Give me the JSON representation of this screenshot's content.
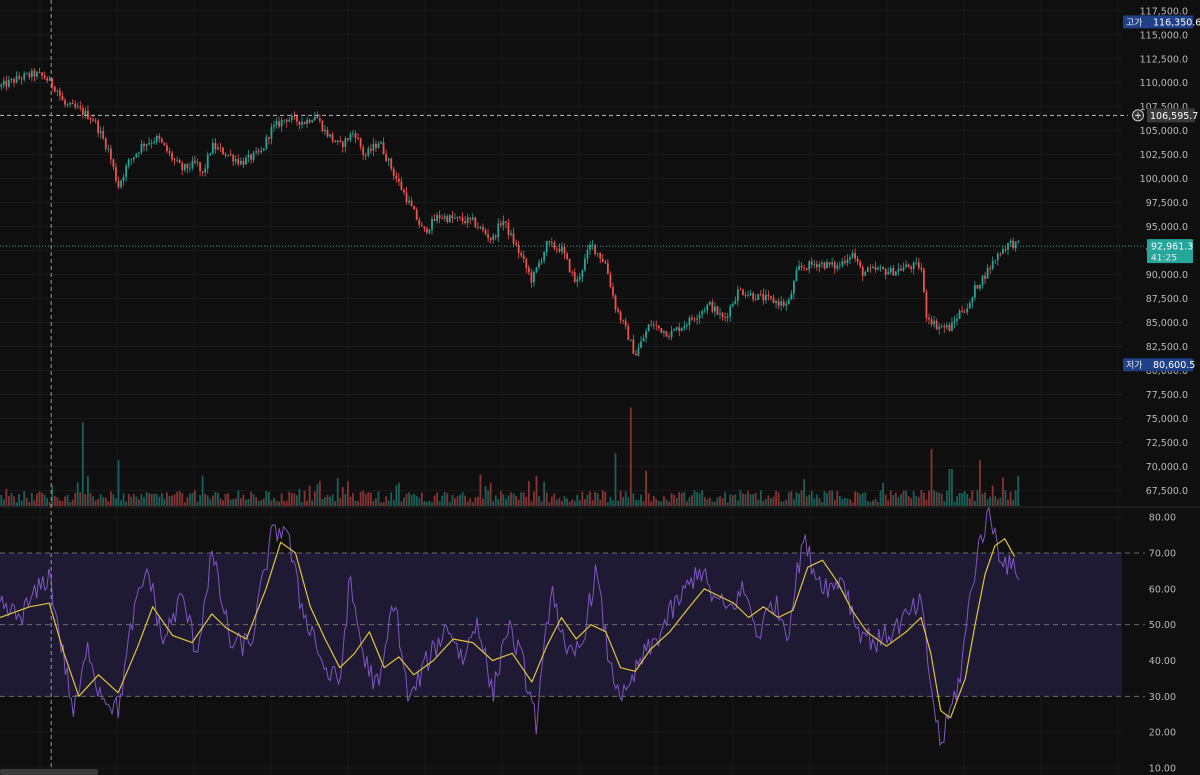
{
  "chart_data": [
    {
      "type": "candlestick",
      "panel": "price",
      "y_ticks": [
        "117,500.0",
        "115,000.0",
        "112,500.0",
        "110,000.0",
        "107,500.0",
        "105,000.0",
        "102,500.0",
        "100,000.0",
        "97,500.0",
        "95,000.0",
        "92,500.0",
        "90,000.0",
        "87,500.0",
        "85,000.0",
        "82,500.0",
        "80,000.0",
        "77,500.0",
        "75,000.0",
        "72,500.0",
        "70,000.0",
        "67,500.0"
      ],
      "ylim": [
        66500,
        118000
      ],
      "close_path": [
        [
          0,
          109600
        ],
        [
          0.02,
          110500
        ],
        [
          0.035,
          110900
        ],
        [
          0.045,
          110600
        ],
        [
          0.058,
          109300
        ],
        [
          0.065,
          107700
        ],
        [
          0.08,
          107200
        ],
        [
          0.095,
          106200
        ],
        [
          0.11,
          103000
        ],
        [
          0.12,
          99200
        ],
        [
          0.13,
          101600
        ],
        [
          0.145,
          103600
        ],
        [
          0.16,
          104200
        ],
        [
          0.175,
          102100
        ],
        [
          0.185,
          101000
        ],
        [
          0.2,
          101600
        ],
        [
          0.205,
          100200
        ],
        [
          0.215,
          103400
        ],
        [
          0.23,
          102600
        ],
        [
          0.245,
          101700
        ],
        [
          0.265,
          102700
        ],
        [
          0.275,
          105100
        ],
        [
          0.29,
          106300
        ],
        [
          0.31,
          105900
        ],
        [
          0.32,
          106700
        ],
        [
          0.33,
          104900
        ],
        [
          0.345,
          103400
        ],
        [
          0.36,
          104900
        ],
        [
          0.37,
          102300
        ],
        [
          0.385,
          103900
        ],
        [
          0.4,
          100500
        ],
        [
          0.415,
          97500
        ],
        [
          0.43,
          94400
        ],
        [
          0.445,
          96100
        ],
        [
          0.46,
          95800
        ],
        [
          0.48,
          95500
        ],
        [
          0.5,
          93600
        ],
        [
          0.51,
          95800
        ],
        [
          0.52,
          93700
        ],
        [
          0.53,
          91700
        ],
        [
          0.54,
          89400
        ],
        [
          0.555,
          93100
        ],
        [
          0.57,
          92700
        ],
        [
          0.585,
          89000
        ],
        [
          0.6,
          93200
        ],
        [
          0.615,
          91100
        ],
        [
          0.625,
          86600
        ],
        [
          0.635,
          84300
        ],
        [
          0.645,
          81600
        ],
        [
          0.66,
          84900
        ],
        [
          0.68,
          83800
        ],
        [
          0.7,
          85200
        ],
        [
          0.72,
          86900
        ],
        [
          0.735,
          85300
        ],
        [
          0.75,
          88400
        ],
        [
          0.765,
          87800
        ],
        [
          0.78,
          87400
        ],
        [
          0.8,
          86800
        ],
        [
          0.81,
          90600
        ],
        [
          0.83,
          91200
        ],
        [
          0.85,
          90800
        ],
        [
          0.865,
          92300
        ],
        [
          0.875,
          90200
        ],
        [
          0.89,
          90500
        ],
        [
          0.905,
          90300
        ],
        [
          0.92,
          90800
        ],
        [
          0.935,
          90900
        ],
        [
          0.94,
          85900
        ],
        [
          0.95,
          84700
        ],
        [
          0.965,
          84400
        ],
        [
          0.975,
          86200
        ],
        [
          0.985,
          86800
        ],
        [
          0.99,
          88600
        ],
        [
          1,
          90000
        ],
        [
          1.015,
          92400
        ],
        [
          1.025,
          93300
        ],
        [
          1.035,
          93000
        ]
      ],
      "volume": {
        "ylim": [
          0,
          125
        ],
        "spikes": [
          [
            0.085,
            95
          ],
          [
            0.12,
            52
          ],
          [
            0.625,
            60
          ],
          [
            0.64,
            112
          ],
          [
            0.655,
            40
          ],
          [
            0.945,
            65
          ],
          [
            0.995,
            52
          ],
          [
            0.965,
            42
          ]
        ]
      },
      "annotations": [
        {
          "label": "고가",
          "value": "116,350.6",
          "price": 116350.6,
          "color": "#1f3f87"
        },
        {
          "label": "저가",
          "value": "80,600.5",
          "price": 80600.5,
          "color": "#1f3f87"
        }
      ],
      "crosshair": {
        "price": 106595.7,
        "text": "106,595.7",
        "x_fraction": 0.052
      },
      "last_price": {
        "price": 92961.3,
        "text": "92,961.3",
        "countdown": "41:25",
        "color": "#26a69a"
      },
      "up_color": "#26a69a",
      "down_color": "#ef5350"
    },
    {
      "type": "line",
      "panel": "rsi",
      "y_ticks": [
        "80.00",
        "70.00",
        "60.00",
        "50.00",
        "40.00",
        "30.00",
        "20.00",
        "10.00"
      ],
      "ylim": [
        10,
        82
      ],
      "bands": {
        "upper": 70,
        "middle": 50,
        "lower": 30,
        "fill": "#1f1a33"
      },
      "series": [
        {
          "key": "rsi",
          "color": "#7e57c2",
          "values": [
            [
              0,
              55
            ],
            [
              0.02,
              52
            ],
            [
              0.04,
              60
            ],
            [
              0.05,
              64
            ],
            [
              0.06,
              48
            ],
            [
              0.075,
              25
            ],
            [
              0.09,
              44
            ],
            [
              0.1,
              32
            ],
            [
              0.12,
              26
            ],
            [
              0.135,
              52
            ],
            [
              0.15,
              66
            ],
            [
              0.165,
              45
            ],
            [
              0.185,
              58
            ],
            [
              0.2,
              42
            ],
            [
              0.215,
              70
            ],
            [
              0.235,
              44
            ],
            [
              0.255,
              45
            ],
            [
              0.275,
              74
            ],
            [
              0.29,
              78
            ],
            [
              0.305,
              56
            ],
            [
              0.32,
              46
            ],
            [
              0.33,
              37
            ],
            [
              0.345,
              34
            ],
            [
              0.355,
              62
            ],
            [
              0.37,
              40
            ],
            [
              0.385,
              32
            ],
            [
              0.4,
              58
            ],
            [
              0.415,
              28
            ],
            [
              0.43,
              38
            ],
            [
              0.455,
              50
            ],
            [
              0.47,
              40
            ],
            [
              0.485,
              52
            ],
            [
              0.5,
              30
            ],
            [
              0.515,
              50
            ],
            [
              0.53,
              40
            ],
            [
              0.545,
              22
            ],
            [
              0.56,
              62
            ],
            [
              0.575,
              40
            ],
            [
              0.59,
              44
            ],
            [
              0.605,
              65
            ],
            [
              0.62,
              37
            ],
            [
              0.635,
              29
            ],
            [
              0.65,
              40
            ],
            [
              0.665,
              45
            ],
            [
              0.68,
              53
            ],
            [
              0.695,
              59
            ],
            [
              0.71,
              66
            ],
            [
              0.725,
              57
            ],
            [
              0.74,
              54
            ],
            [
              0.755,
              60
            ],
            [
              0.77,
              47
            ],
            [
              0.785,
              57
            ],
            [
              0.8,
              48
            ],
            [
              0.815,
              74
            ],
            [
              0.83,
              63
            ],
            [
              0.845,
              60
            ],
            [
              0.855,
              64
            ],
            [
              0.87,
              49
            ],
            [
              0.89,
              45
            ],
            [
              0.905,
              48
            ],
            [
              0.92,
              52
            ],
            [
              0.935,
              56
            ],
            [
              0.945,
              33
            ],
            [
              0.955,
              16
            ],
            [
              0.965,
              26
            ],
            [
              0.975,
              36
            ],
            [
              0.985,
              58
            ],
            [
              0.995,
              74
            ],
            [
              1.005,
              81
            ],
            [
              1.015,
              70
            ],
            [
              1.025,
              66
            ],
            [
              1.035,
              65
            ]
          ]
        },
        {
          "key": "rsi-ma",
          "color": "#e0c43c",
          "values": [
            [
              0,
              52
            ],
            [
              0.03,
              55
            ],
            [
              0.05,
              56
            ],
            [
              0.065,
              42
            ],
            [
              0.08,
              30
            ],
            [
              0.1,
              36
            ],
            [
              0.12,
              31
            ],
            [
              0.14,
              44
            ],
            [
              0.155,
              55
            ],
            [
              0.175,
              47
            ],
            [
              0.195,
              45
            ],
            [
              0.215,
              53
            ],
            [
              0.23,
              49
            ],
            [
              0.25,
              46
            ],
            [
              0.27,
              60
            ],
            [
              0.285,
              73
            ],
            [
              0.3,
              70
            ],
            [
              0.315,
              55
            ],
            [
              0.33,
              46
            ],
            [
              0.345,
              38
            ],
            [
              0.36,
              42
            ],
            [
              0.375,
              48
            ],
            [
              0.39,
              38
            ],
            [
              0.405,
              41
            ],
            [
              0.42,
              36
            ],
            [
              0.44,
              40
            ],
            [
              0.46,
              46
            ],
            [
              0.48,
              45
            ],
            [
              0.5,
              40
            ],
            [
              0.52,
              42
            ],
            [
              0.54,
              34
            ],
            [
              0.555,
              44
            ],
            [
              0.57,
              52
            ],
            [
              0.585,
              46
            ],
            [
              0.6,
              50
            ],
            [
              0.615,
              48
            ],
            [
              0.63,
              38
            ],
            [
              0.645,
              37
            ],
            [
              0.66,
              43
            ],
            [
              0.68,
              48
            ],
            [
              0.7,
              55
            ],
            [
              0.715,
              60
            ],
            [
              0.73,
              58
            ],
            [
              0.745,
              56
            ],
            [
              0.76,
              52
            ],
            [
              0.775,
              55
            ],
            [
              0.79,
              52
            ],
            [
              0.805,
              54
            ],
            [
              0.82,
              66
            ],
            [
              0.835,
              68
            ],
            [
              0.85,
              62
            ],
            [
              0.865,
              54
            ],
            [
              0.88,
              48
            ],
            [
              0.9,
              44
            ],
            [
              0.92,
              48
            ],
            [
              0.935,
              52
            ],
            [
              0.945,
              42
            ],
            [
              0.955,
              26
            ],
            [
              0.965,
              24
            ],
            [
              0.98,
              35
            ],
            [
              0.99,
              50
            ],
            [
              1.0,
              64
            ],
            [
              1.01,
              72
            ],
            [
              1.02,
              74
            ],
            [
              1.03,
              69
            ]
          ]
        }
      ]
    }
  ]
}
